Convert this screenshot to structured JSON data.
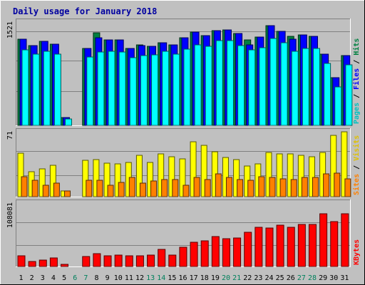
{
  "chart_data": {
    "type": "bar",
    "title": "Daily usage for January 2018",
    "categories": [
      "1",
      "2",
      "3",
      "4",
      "5",
      "6",
      "7",
      "8",
      "9",
      "10",
      "11",
      "12",
      "13",
      "14",
      "15",
      "16",
      "17",
      "18",
      "19",
      "20",
      "21",
      "22",
      "23",
      "24",
      "25",
      "26",
      "27",
      "28",
      "29",
      "30",
      "31"
    ],
    "weekend_days": [
      "6",
      "7",
      "13",
      "14",
      "20",
      "21",
      "27",
      "28"
    ],
    "panels": [
      {
        "id": "hits",
        "axis_max_label": "1521",
        "ylim": [
          0,
          1521
        ],
        "series": [
          {
            "name": "Hits",
            "color": "#008040",
            "values": [
              1275,
              1185,
              1250,
              1205,
              116,
              0,
              1140,
              1370,
              1270,
              1265,
              1140,
              1195,
              1170,
              1225,
              1190,
              1295,
              1385,
              1330,
              1410,
              1415,
              1360,
              1270,
              1315,
              1480,
              1395,
              1320,
              1340,
              1325,
              1055,
              710,
              1030
            ]
          },
          {
            "name": "Files",
            "color": "#0000ff",
            "values": [
              1275,
              1185,
              1250,
              1205,
              116,
              0,
              1140,
              1295,
              1270,
              1265,
              1140,
              1185,
              1170,
              1225,
              1190,
              1295,
              1385,
              1330,
              1410,
              1415,
              1360,
              1195,
              1315,
              1480,
              1395,
              1275,
              1340,
              1325,
              1055,
              710,
              1030
            ]
          },
          {
            "name": "Pages",
            "color": "#00ffff",
            "values": [
              1115,
              1060,
              1095,
              1055,
              95,
              0,
              1010,
              1085,
              1095,
              1085,
              1000,
              1040,
              1045,
              1095,
              1055,
              1130,
              1195,
              1170,
              1255,
              1260,
              1185,
              1115,
              1155,
              1285,
              1220,
              1100,
              1140,
              1145,
              920,
              570,
              895
            ]
          }
        ]
      },
      {
        "id": "visits",
        "axis_max_label": "71",
        "ylim": [
          0,
          71
        ],
        "series": [
          {
            "name": "Visits",
            "color": "#ffff00",
            "values": [
              48,
              28,
              31,
              35,
              6,
              0,
              40,
              41,
              37,
              36,
              38,
              46,
              38,
              47,
              44,
              42,
              61,
              57,
              50,
              43,
              41,
              34,
              36,
              49,
              47,
              47,
              46,
              44,
              49,
              68,
              72
            ]
          },
          {
            "name": "Sites",
            "color": "#ff8000",
            "values": [
              22,
              18,
              13,
              15,
              6,
              0,
              18,
              18,
              13,
              16,
              21,
              15,
              17,
              19,
              19,
              13,
              21,
              19,
              25,
              21,
              19,
              18,
              22,
              21,
              20,
              19,
              21,
              21,
              25,
              26,
              20
            ]
          }
        ]
      },
      {
        "id": "kbytes",
        "axis_max_label": "108081",
        "ylim": [
          0,
          108081
        ],
        "series": [
          {
            "name": "KBytes",
            "color": "#ff0000",
            "values": [
              18000,
              9000,
              11000,
              15000,
              3500,
              0,
              17500,
              22500,
              19000,
              19500,
              18000,
              18000,
              19500,
              29000,
              20000,
              33000,
              41500,
              44500,
              52000,
              48000,
              49500,
              58500,
              67500,
              66500,
              71000,
              67500,
              72500,
              73000,
              90500,
              77500,
              91000
            ]
          }
        ]
      }
    ],
    "right_legends": [
      [
        {
          "text": "Pages",
          "color": "#00c0c0"
        },
        {
          "text": " / ",
          "color": "#000000"
        },
        {
          "text": "Files",
          "color": "#0000ff"
        },
        {
          "text": " / ",
          "color": "#000000"
        },
        {
          "text": "Hits",
          "color": "#008040"
        }
      ],
      [
        {
          "text": "Sites",
          "color": "#ff8000"
        },
        {
          "text": " / ",
          "color": "#000000"
        },
        {
          "text": "Visits",
          "color": "#e0c000"
        }
      ],
      [
        {
          "text": "KBytes",
          "color": "#ff0000"
        }
      ]
    ]
  }
}
